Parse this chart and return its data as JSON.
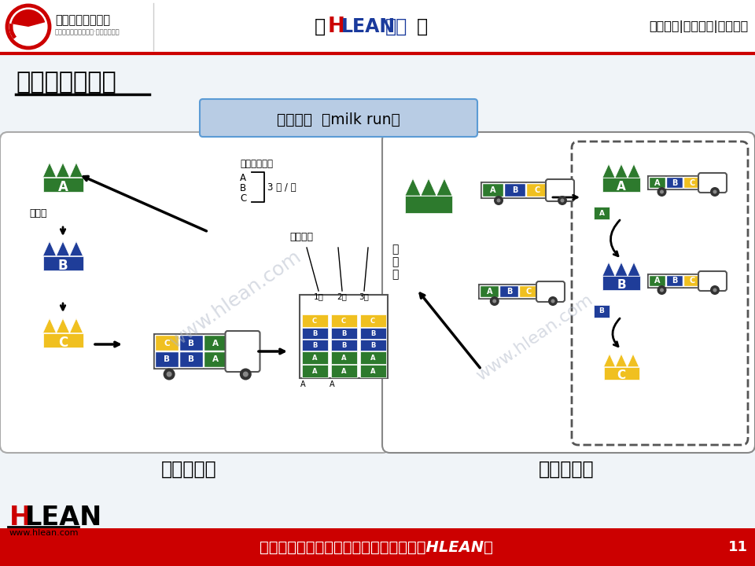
{
  "title_main": "外物流基本模式",
  "header_hlean_bracket_l": "【",
  "header_H": "H",
  "header_lean": "LEAN",
  "header_xuetang": "学堂",
  "header_bracket_r": "】",
  "header_right": "精益生产|智能制造|管理前沿",
  "header_logo_text": "精益生产促进中心",
  "header_logo_sub": "中国先进精益管理体系·智能制造系统",
  "milk_run_label": "混载搬运  （milk run）",
  "left_label": "出发地混载",
  "right_label": "目的地混载",
  "supplier_label": "供应商",
  "supplier_label_right_lines": [
    "供",
    "应",
    "商"
  ],
  "transport_label": "（搬运次数）",
  "times_label": "3 次 / 天",
  "customer_label": "（客户）",
  "abc_labels": [
    "A",
    "B",
    "C"
  ],
  "times_labels": [
    "1次",
    "2次",
    "3次"
  ],
  "footer_text": "做行业标杆，找精弘益；要幸福高效，用HLEAN！",
  "footer_num": "11",
  "footer_bg": "#cc0000",
  "footer_text_color": "#ffffff",
  "bg_color": "#f0f4f8",
  "header_bg": "#ffffff",
  "header_line_color": "#cc0000",
  "milk_run_box_bg": "#b8cce4",
  "milk_run_box_border": "#5b9bd5",
  "color_A": "#2d7a2d",
  "color_B": "#1f3d99",
  "color_C": "#f0c020",
  "watermark": "www.hlean.com"
}
